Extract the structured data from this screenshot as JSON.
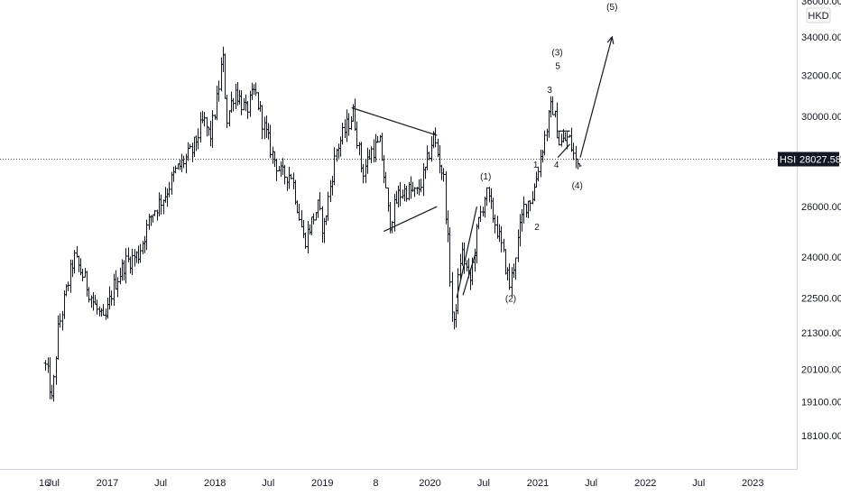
{
  "chart_data": {
    "type": "ohlc",
    "symbol": "HSI",
    "currency": "HKD",
    "last_price": "28027.58",
    "last_value": 28027.58,
    "y_scale": "log",
    "ylim": [
      17500,
      36000
    ],
    "y_ticks": [
      "36000.00",
      "34000.00",
      "32000.00",
      "30000.00",
      "28000.00",
      "26000.00",
      "24000.00",
      "22500.00",
      "21300.00",
      "20100.00",
      "19100.00",
      "18100.00"
    ],
    "x_range": [
      "2016-06-01",
      "2023-08-01"
    ],
    "x_ticks": [
      {
        "date": "2016-06-01",
        "label": "16"
      },
      {
        "date": "2016-07-01",
        "label": "Jul"
      },
      {
        "date": "2017-01-01",
        "label": "2017"
      },
      {
        "date": "2017-07-01",
        "label": "Jul"
      },
      {
        "date": "2018-01-01",
        "label": "2018"
      },
      {
        "date": "2018-07-01",
        "label": "Jul"
      },
      {
        "date": "2019-01-01",
        "label": "2019"
      },
      {
        "date": "2019-07-01",
        "label": "8"
      },
      {
        "date": "2020-01-01",
        "label": "2020"
      },
      {
        "date": "2020-07-01",
        "label": "Jul"
      },
      {
        "date": "2021-01-01",
        "label": "2021"
      },
      {
        "date": "2021-07-01",
        "label": "Jul"
      },
      {
        "date": "2022-01-01",
        "label": "2022"
      },
      {
        "date": "2022-07-01",
        "label": "Jul"
      },
      {
        "date": "2023-01-01",
        "label": "2023"
      }
    ],
    "price_path": [
      [
        "2016-06-01",
        20300
      ],
      [
        "2016-06-15",
        19800
      ],
      [
        "2016-06-27",
        19000
      ],
      [
        "2016-07-15",
        21300
      ],
      [
        "2016-08-15",
        22800
      ],
      [
        "2016-09-08",
        24000
      ],
      [
        "2016-10-10",
        23300
      ],
      [
        "2016-11-15",
        22300
      ],
      [
        "2016-12-20",
        21600
      ],
      [
        "2017-01-20",
        22900
      ],
      [
        "2017-03-01",
        23800
      ],
      [
        "2017-04-15",
        24100
      ],
      [
        "2017-05-30",
        25700
      ],
      [
        "2017-07-15",
        26500
      ],
      [
        "2017-08-20",
        27500
      ],
      [
        "2017-10-15",
        28400
      ],
      [
        "2017-11-22",
        29800
      ],
      [
        "2017-12-15",
        29000
      ],
      [
        "2018-01-10",
        31000
      ],
      [
        "2018-01-26",
        33100
      ],
      [
        "2018-02-09",
        29800
      ],
      [
        "2018-03-09",
        31300
      ],
      [
        "2018-04-15",
        30200
      ],
      [
        "2018-05-15",
        31200
      ],
      [
        "2018-06-15",
        29500
      ],
      [
        "2018-07-15",
        28200
      ],
      [
        "2018-08-15",
        27300
      ],
      [
        "2018-09-15",
        27400
      ],
      [
        "2018-10-30",
        24600
      ],
      [
        "2018-12-15",
        26000
      ],
      [
        "2019-01-03",
        25000
      ],
      [
        "2019-02-15",
        28400
      ],
      [
        "2019-04-15",
        30200
      ],
      [
        "2019-05-15",
        27400
      ],
      [
        "2019-06-15",
        28400
      ],
      [
        "2019-07-15",
        28700
      ],
      [
        "2019-08-15",
        25300
      ],
      [
        "2019-09-15",
        26500
      ],
      [
        "2019-10-15",
        26700
      ],
      [
        "2019-11-15",
        26500
      ],
      [
        "2019-12-15",
        27500
      ],
      [
        "2020-01-10",
        29100
      ],
      [
        "2020-02-15",
        27200
      ],
      [
        "2020-03-19",
        21200
      ],
      [
        "2020-04-15",
        24300
      ],
      [
        "2020-05-15",
        23000
      ],
      [
        "2020-06-10",
        25200
      ],
      [
        "2020-07-08",
        26600
      ],
      [
        "2020-08-15",
        25100
      ],
      [
        "2020-09-28",
        22900
      ],
      [
        "2020-11-15",
        26000
      ],
      [
        "2020-12-15",
        26500
      ],
      [
        "2021-01-15",
        28500
      ],
      [
        "2021-02-18",
        30600
      ],
      [
        "2021-03-15",
        28700
      ],
      [
        "2021-04-15",
        29000
      ],
      [
        "2021-05-13",
        27700
      ],
      [
        "2021-05-21",
        28027.58
      ]
    ],
    "annotations": [
      {
        "label": "(1)",
        "date": "2020-07-08",
        "price": 27300
      },
      {
        "label": "(2)",
        "date": "2020-10-01",
        "price": 22500
      },
      {
        "label": "1",
        "date": "2020-12-25",
        "price": 27800
      },
      {
        "label": "2",
        "date": "2020-12-29",
        "price": 25200
      },
      {
        "label": "3",
        "date": "2021-02-10",
        "price": 31300
      },
      {
        "label": "4",
        "date": "2021-03-05",
        "price": 27800
      },
      {
        "label": "5",
        "date": "2021-03-10",
        "price": 32500
      },
      {
        "label": "(3)",
        "date": "2021-03-08",
        "price": 33200
      },
      {
        "label": "(4)",
        "date": "2021-05-15",
        "price": 26900
      },
      {
        "label": "(5)",
        "date": "2021-09-10",
        "price": 35700
      }
    ],
    "trendlines": [
      {
        "from": [
          "2019-04-10",
          30400
        ],
        "to": [
          "2020-01-25",
          29100
        ]
      },
      {
        "from": [
          "2019-07-28",
          25000
        ],
        "to": [
          "2020-01-25",
          26000
        ]
      },
      {
        "from": [
          "2020-04-01",
          22500
        ],
        "to": [
          "2020-06-08",
          26000
        ]
      },
      {
        "from": [
          "2020-04-22",
          22600
        ],
        "to": [
          "2020-06-05",
          24200
        ]
      },
      {
        "from": [
          "2021-03-10",
          29300
        ],
        "to": [
          "2021-04-20",
          29300
        ]
      },
      {
        "from": [
          "2021-03-10",
          28100
        ],
        "to": [
          "2021-04-20",
          28700
        ]
      }
    ],
    "projection_arrow": {
      "from": [
        "2021-05-25",
        28100
      ],
      "to": [
        "2021-09-10",
        34000
      ]
    }
  }
}
